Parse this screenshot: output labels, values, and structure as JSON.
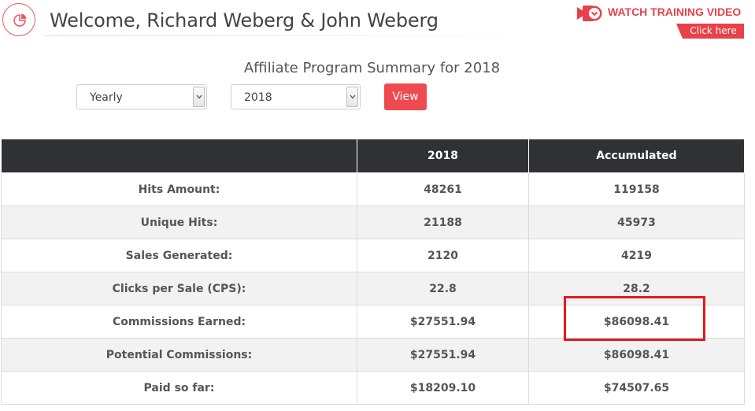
{
  "header": {
    "welcome_text": "Welcome, Richard Weberg & John Weberg",
    "icon": "pie-chart-icon"
  },
  "training": {
    "label": "WATCH TRAINING VIDEO",
    "click_label": "Click here",
    "icon": "video-camera-icon",
    "accent_color": "#e8414a"
  },
  "summary": {
    "title": "Affiliate Program Summary for 2018",
    "period_select": {
      "value": "Yearly"
    },
    "year_select": {
      "value": "2018"
    },
    "view_label": "View"
  },
  "table": {
    "headers": [
      "",
      "2018",
      "Accumulated"
    ],
    "rows": [
      {
        "label": "Hits Amount:",
        "year": "48261",
        "accumulated": "119158"
      },
      {
        "label": "Unique Hits:",
        "year": "21188",
        "accumulated": "45973"
      },
      {
        "label": "Sales Generated:",
        "year": "2120",
        "accumulated": "4219"
      },
      {
        "label": "Clicks per Sale (CPS):",
        "year": "22.8",
        "accumulated": "28.2"
      },
      {
        "label": "Commissions Earned:",
        "year": "$27551.94",
        "accumulated": "$86098.41"
      },
      {
        "label": "Potential Commissions:",
        "year": "$27551.94",
        "accumulated": "$86098.41"
      },
      {
        "label": "Paid so far:",
        "year": "$18209.10",
        "accumulated": "$74507.65"
      }
    ]
  },
  "colors": {
    "header_bg": "#2f3134",
    "button_bg": "#f04a51",
    "highlight": "#e11b1b"
  }
}
